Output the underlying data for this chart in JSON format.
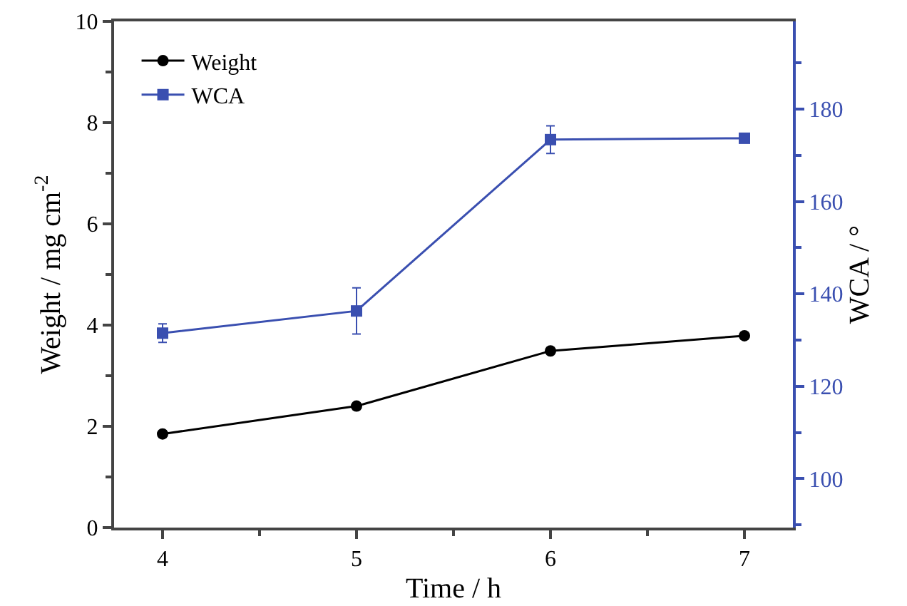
{
  "chart_data": {
    "type": "line",
    "xlabel": "Time / h",
    "ylabel": "Weight / mg cm$^{-2}$",
    "y2label": "WCA / °",
    "x": [
      4,
      5,
      6,
      7
    ],
    "xlim": [
      3.75,
      7.25
    ],
    "xticks": [
      4,
      5,
      6,
      7
    ],
    "ylim": [
      0,
      10
    ],
    "yticks": [
      0,
      2,
      4,
      6,
      8,
      10
    ],
    "y2lim": [
      89.4,
      199
    ],
    "y2ticks": [
      100,
      120,
      140,
      160,
      180
    ],
    "series": [
      {
        "name": "Weight",
        "color": "#000000",
        "marker": "circle",
        "values": [
          1.85,
          2.4,
          3.49,
          3.79
        ]
      },
      {
        "name": "WCA",
        "color": "#3a4fb0",
        "marker": "square",
        "axis": "y2",
        "values": [
          131.5,
          136.3,
          173.4,
          173.7
        ],
        "errors": [
          2,
          5,
          3,
          null
        ]
      }
    ],
    "legend": "top left",
    "grid": false,
    "line_style": "solid"
  }
}
